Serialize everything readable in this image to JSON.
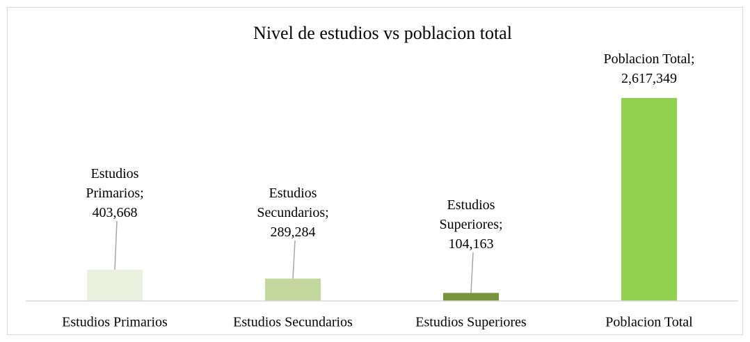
{
  "chart_data": {
    "type": "bar",
    "title": "Nivel de estudios vs poblacion total",
    "categories": [
      "Estudios Primarios",
      "Estudios Secundarios",
      "Estudios Superiores",
      "Poblacion Total"
    ],
    "values": [
      403668,
      289284,
      104163,
      2617349
    ],
    "value_labels": [
      "Estudios Primarios; 403,668",
      "Estudios Secundarios; 289,284",
      "Estudios Superiores; 104,163",
      "Poblacion Total; 2,617,349"
    ],
    "colors": [
      "#ebf1de",
      "#c3d69b",
      "#77933c",
      "#92d050"
    ]
  }
}
